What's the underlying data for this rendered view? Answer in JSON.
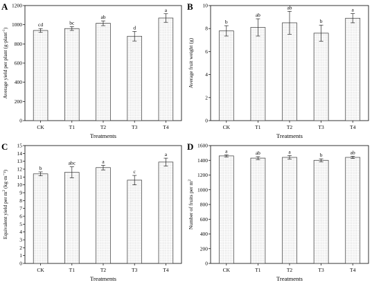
{
  "chart_data": [
    {
      "panel": "A",
      "type": "bar",
      "categories": [
        "CK",
        "T1",
        "T2",
        "T3",
        "T4"
      ],
      "values": [
        940,
        960,
        1015,
        880,
        1070
      ],
      "errors": [
        20,
        20,
        25,
        50,
        45
      ],
      "letters": [
        "cd",
        "bc",
        "ab",
        "d",
        "a"
      ],
      "xlabel": "Treatments",
      "ylabel_parts": [
        "Average yield per plant (g·plant",
        "-1",
        ")"
      ],
      "ylim": [
        0,
        1200
      ],
      "yticks": [
        0,
        200,
        400,
        600,
        800,
        1000,
        1200
      ]
    },
    {
      "panel": "B",
      "type": "bar",
      "categories": [
        "CK",
        "T1",
        "T2",
        "T3",
        "T4"
      ],
      "values": [
        7.8,
        8.1,
        8.5,
        7.6,
        8.9
      ],
      "errors": [
        0.45,
        0.75,
        1.0,
        0.7,
        0.4
      ],
      "letters": [
        "b",
        "ab",
        "ab",
        "b",
        "a"
      ],
      "xlabel": "Treatments",
      "ylabel_parts": [
        "Average fruit weight (g)",
        "",
        ""
      ],
      "ylim": [
        0,
        10
      ],
      "yticks": [
        0,
        2,
        4,
        6,
        8,
        10
      ]
    },
    {
      "panel": "C",
      "type": "bar",
      "categories": [
        "CK",
        "T1",
        "T2",
        "T3",
        "T4"
      ],
      "values": [
        11.4,
        11.6,
        12.2,
        10.6,
        12.9
      ],
      "errors": [
        0.25,
        0.7,
        0.3,
        0.6,
        0.5
      ],
      "letters": [
        "b",
        "abc",
        "a",
        "c",
        "a"
      ],
      "xlabel": "Treatments",
      "ylabel_parts": [
        "Equivalent yield per m",
        "2",
        " (kg·m⁻²)"
      ],
      "ylim": [
        0,
        15
      ],
      "yticks": [
        0,
        1,
        2,
        3,
        4,
        5,
        6,
        7,
        8,
        9,
        10,
        11,
        12,
        13,
        14,
        15
      ]
    },
    {
      "panel": "D",
      "type": "bar",
      "categories": [
        "CK",
        "T1",
        "T2",
        "T3",
        "T4"
      ],
      "values": [
        1460,
        1430,
        1440,
        1400,
        1440
      ],
      "errors": [
        15,
        20,
        25,
        20,
        15
      ],
      "letters": [
        "a",
        "ab",
        "a",
        "b",
        "ab"
      ],
      "xlabel": "Treatments",
      "ylabel_parts": [
        "Number of fruits per m",
        "2",
        ""
      ],
      "ylim": [
        0,
        1600
      ],
      "yticks": [
        0,
        200,
        400,
        600,
        800,
        1000,
        1200,
        1400,
        1600
      ]
    }
  ]
}
